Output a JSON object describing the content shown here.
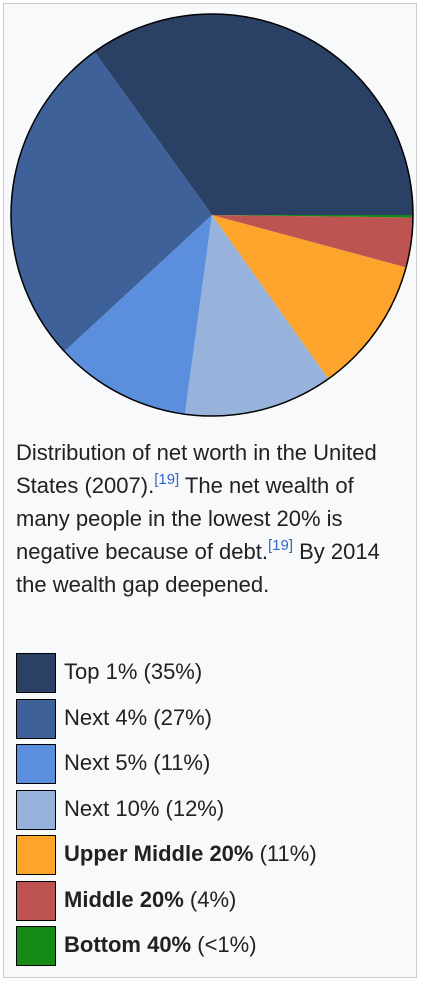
{
  "chart_data": {
    "type": "pie",
    "slices": [
      {
        "label": "Top 1%",
        "value": 35,
        "color": "#2a4065"
      },
      {
        "label": "Next 4%",
        "value": 27,
        "color": "#3e6199"
      },
      {
        "label": "Next 5%",
        "value": 11,
        "color": "#5b8edd"
      },
      {
        "label": "Next 10%",
        "value": 12,
        "color": "#97b3db"
      },
      {
        "label": "Upper Middle 20%",
        "value": 11,
        "color": "#fda42d"
      },
      {
        "label": "Middle 20%",
        "value": 4,
        "color": "#be5451"
      },
      {
        "label": "Bottom 40%",
        "value": 0.2,
        "color": "#158a15"
      }
    ]
  },
  "caption": {
    "text_1": "Distribution of net worth in the United States (2007).",
    "ref_1": "[19]",
    "text_2": " The net wealth of many people in the lowest 20% is negative because of debt.",
    "ref_2": "[19]",
    "text_3": " By 2014 the wealth gap deepened."
  },
  "legend": [
    {
      "name": "Top 1%",
      "value_text": " (35%)",
      "bold": false,
      "color": "#2a4065"
    },
    {
      "name": "Next 4%",
      "value_text": " (27%)",
      "bold": false,
      "color": "#3e6199"
    },
    {
      "name": "Next 5%",
      "value_text": " (11%)",
      "bold": false,
      "color": "#5b8edd"
    },
    {
      "name": "Next 10%",
      "value_text": " (12%)",
      "bold": false,
      "color": "#97b3db"
    },
    {
      "name": "Upper Middle 20%",
      "value_text": " (11%)",
      "bold": true,
      "color": "#fda42d"
    },
    {
      "name": "Middle 20%",
      "value_text": " (4%)",
      "bold": true,
      "color": "#be5451"
    },
    {
      "name": "Bottom 40%",
      "value_text": " (<1%)",
      "bold": true,
      "color": "#158a15"
    }
  ]
}
